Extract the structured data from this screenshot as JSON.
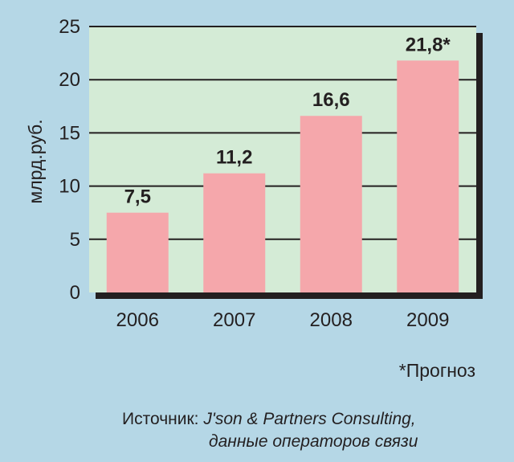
{
  "chart_data": {
    "type": "bar",
    "categories": [
      "2006",
      "2007",
      "2008",
      "2009"
    ],
    "values": [
      7.5,
      11.2,
      16.6,
      21.8
    ],
    "value_labels": [
      "7,5",
      "11,2",
      "16,6",
      "21,8*"
    ],
    "ylabel": "млрд.руб.",
    "ylim": [
      0,
      25
    ],
    "yticks": [
      0,
      5,
      10,
      15,
      20,
      25
    ],
    "grid": true,
    "colors": {
      "background": "#b5d7e6",
      "plot_area": "#d4ebd6",
      "bar": "#f5a7ab",
      "grid": "#231f20",
      "shadow": "#231f20"
    }
  },
  "footnote": "*Прогноз",
  "source": {
    "prefix": "Источник: ",
    "name": "J'son & Partners Consulting,",
    "line2": "данные операторов связи"
  }
}
